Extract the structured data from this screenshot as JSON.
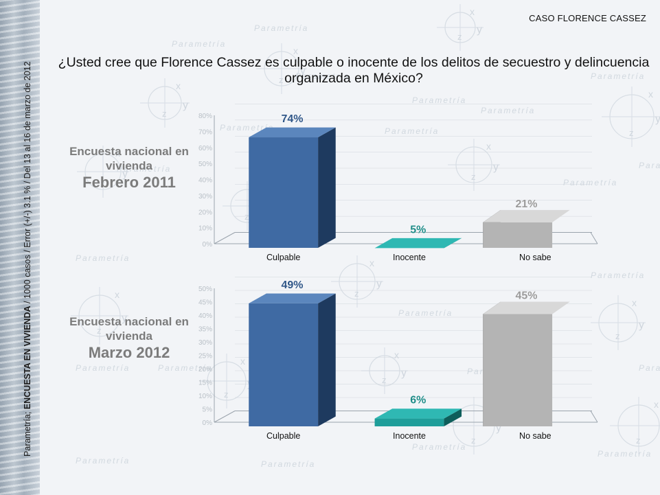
{
  "header": {
    "title": "CASO FLORENCE CASSEZ",
    "question": "¿Usted cree que Florence Cassez es culpable o inocente de los delitos de secuestro y delincuencia organizada en México?"
  },
  "side_note": {
    "prefix": "Parametría; ",
    "bold": "ENCUESTA EN VIVIENDA",
    "suffix": " / 1000 casos / Error (+/-) 3.1 % / Del 13 al 16 de marzo de 2012"
  },
  "watermark": {
    "brand": "Parametría",
    "symbols": [
      "x",
      "y",
      "z"
    ]
  },
  "colors": {
    "culpable": "#3f6aa3",
    "inocente": "#1f9e9a",
    "no_sabe": "#b4b4b4",
    "label_culpable": "#2e5587",
    "label_inocente": "#1f8c88",
    "label_no_sabe": "#9a9a9a"
  },
  "chart_data": [
    {
      "type": "bar",
      "title_line1": "Encuesta nacional en",
      "title_line2": "vivienda",
      "title_date": "Febrero 2011",
      "categories": [
        "Culpable",
        "Inocente",
        "No sabe"
      ],
      "values": [
        74,
        5,
        21
      ],
      "data_labels": [
        "74%",
        "5%",
        "21%"
      ],
      "ylim": [
        0,
        80
      ],
      "yticks": [
        0,
        10,
        20,
        30,
        40,
        50,
        60,
        70,
        80
      ],
      "ytick_labels": [
        "0%",
        "10%",
        "20%",
        "30%",
        "40%",
        "50%",
        "60%",
        "70%",
        "80%"
      ]
    },
    {
      "type": "bar",
      "title_line1": "Encuesta nacional en",
      "title_line2": "vivienda",
      "title_date": "Marzo 2012",
      "categories": [
        "Culpable",
        "Inocente",
        "No sabe"
      ],
      "values": [
        49,
        6,
        45
      ],
      "data_labels": [
        "49%",
        "6%",
        "45%"
      ],
      "ylim": [
        0,
        50
      ],
      "yticks": [
        0,
        5,
        10,
        15,
        20,
        25,
        30,
        35,
        40,
        45,
        50
      ],
      "ytick_labels": [
        "0%",
        "5%",
        "10%",
        "15%",
        "20%",
        "25%",
        "30%",
        "35%",
        "40%",
        "45%",
        "50%"
      ]
    }
  ]
}
